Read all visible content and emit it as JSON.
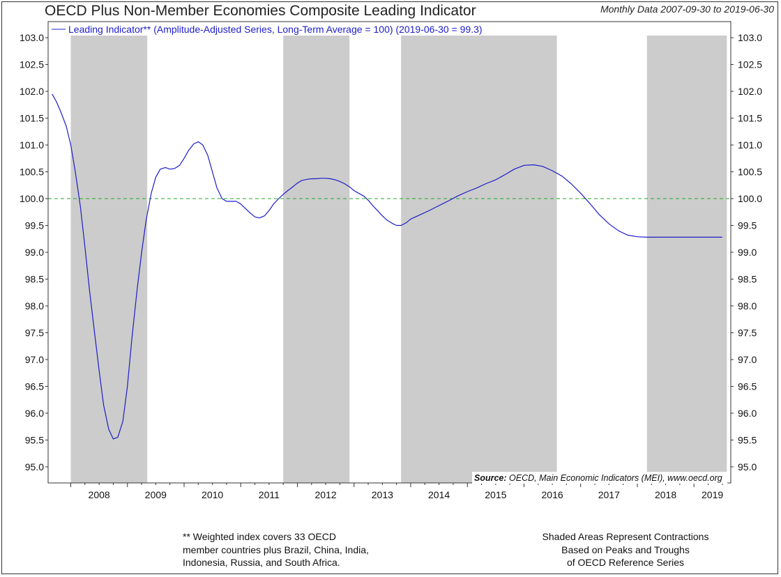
{
  "header": {
    "title": "OECD Plus Non-Member Economies Composite Leading Indicator",
    "date_range": "Monthly Data 2007-09-30 to 2019-06-30"
  },
  "footnotes": {
    "left": [
      "** Weighted index covers 33 OECD",
      "member countries plus Brazil, China, India,",
      "Indonesia, Russia, and South Africa."
    ],
    "right": [
      "Shaded Areas Represent Contractions",
      "Based on Peaks and Troughs",
      "of OECD Reference Series"
    ]
  },
  "chart_data": {
    "type": "line",
    "title": "OECD Plus Non-Member Economies Composite Leading Indicator",
    "legend": "Leading Indicator** (Amplitude-Adjusted Series, Long-Term Average = 100) (2019-06-30 = 99.3)",
    "legend_position": "top-left",
    "source_label": "Source:",
    "source_text": "OECD, Main Economic Indicators (MEI), www.oecd.org",
    "xlim": [
      2007.6,
      2019.65
    ],
    "ylim": [
      94.7,
      103.3
    ],
    "y_ticks": [
      95.0,
      95.5,
      96.0,
      96.5,
      97.0,
      97.5,
      98.0,
      98.5,
      99.0,
      99.5,
      100.0,
      100.5,
      101.0,
      101.5,
      102.0,
      102.5,
      103.0
    ],
    "y_tick_labels": [
      "95.0",
      "95.5",
      "96.0",
      "96.5",
      "97.0",
      "97.5",
      "98.0",
      "98.5",
      "99.0",
      "99.5",
      "100.0",
      "100.5",
      "101.0",
      "101.5",
      "102.0",
      "102.5",
      "103.0"
    ],
    "x_year_labels": [
      "2008",
      "2009",
      "2010",
      "2011",
      "2012",
      "2013",
      "2014",
      "2015",
      "2016",
      "2017",
      "2018",
      "2019"
    ],
    "reference_line": {
      "value": 100.0,
      "color": "#22aa22"
    },
    "shaded_periods": [
      [
        2008.0,
        2009.35
      ],
      [
        2011.75,
        2012.92
      ],
      [
        2013.83,
        2016.58
      ],
      [
        2018.17,
        2019.58
      ]
    ],
    "colors": {
      "series": "#1c1cc8",
      "shade": "#cccccc",
      "reference": "#22aa22"
    },
    "series": [
      {
        "name": "Leading Indicator** (Amplitude-Adjusted Series, Long-Term Average = 100) (2019-06-30 = 99.3)",
        "x": [
          2007.67,
          2007.75,
          2007.83,
          2007.92,
          2008.0,
          2008.08,
          2008.17,
          2008.25,
          2008.33,
          2008.42,
          2008.5,
          2008.58,
          2008.67,
          2008.75,
          2008.83,
          2008.92,
          2009.0,
          2009.08,
          2009.17,
          2009.25,
          2009.33,
          2009.42,
          2009.5,
          2009.58,
          2009.67,
          2009.75,
          2009.83,
          2009.92,
          2010.0,
          2010.08,
          2010.17,
          2010.25,
          2010.33,
          2010.42,
          2010.5,
          2010.58,
          2010.67,
          2010.75,
          2010.83,
          2010.92,
          2011.0,
          2011.08,
          2011.17,
          2011.25,
          2011.33,
          2011.42,
          2011.5,
          2011.58,
          2011.67,
          2011.75,
          2011.83,
          2011.92,
          2012.0,
          2012.08,
          2012.17,
          2012.25,
          2012.33,
          2012.42,
          2012.5,
          2012.58,
          2012.67,
          2012.75,
          2012.83,
          2012.92,
          2013.0,
          2013.08,
          2013.17,
          2013.25,
          2013.33,
          2013.42,
          2013.5,
          2013.58,
          2013.67,
          2013.75,
          2013.83,
          2013.92,
          2014.0,
          2014.17,
          2014.33,
          2014.5,
          2014.67,
          2014.83,
          2015.0,
          2015.17,
          2015.33,
          2015.5,
          2015.67,
          2015.83,
          2016.0,
          2016.17,
          2016.33,
          2016.5,
          2016.67,
          2016.83,
          2017.0,
          2017.17,
          2017.33,
          2017.5,
          2017.67,
          2017.83,
          2018.0,
          2018.17,
          2018.33,
          2018.5,
          2018.67,
          2018.83,
          2019.0,
          2019.17,
          2019.33,
          2019.5
        ],
        "y": [
          101.95,
          101.8,
          101.6,
          101.35,
          101.0,
          100.5,
          99.85,
          99.1,
          98.3,
          97.5,
          96.8,
          96.15,
          95.7,
          95.52,
          95.55,
          95.85,
          96.5,
          97.4,
          98.3,
          99.0,
          99.6,
          100.1,
          100.4,
          100.55,
          100.58,
          100.55,
          100.56,
          100.62,
          100.75,
          100.9,
          101.02,
          101.06,
          101.0,
          100.8,
          100.5,
          100.2,
          100.0,
          99.95,
          99.95,
          99.95,
          99.9,
          99.82,
          99.73,
          99.66,
          99.64,
          99.68,
          99.78,
          99.9,
          100.0,
          100.08,
          100.15,
          100.22,
          100.29,
          100.34,
          100.36,
          100.37,
          100.37,
          100.38,
          100.38,
          100.37,
          100.35,
          100.32,
          100.28,
          100.22,
          100.15,
          100.1,
          100.05,
          99.97,
          99.87,
          99.77,
          99.68,
          99.6,
          99.54,
          99.5,
          99.5,
          99.55,
          99.62,
          99.7,
          99.78,
          99.87,
          99.96,
          100.05,
          100.13,
          100.2,
          100.28,
          100.35,
          100.45,
          100.55,
          100.62,
          100.63,
          100.6,
          100.52,
          100.42,
          100.28,
          100.1,
          99.9,
          99.7,
          99.53,
          99.4,
          99.32,
          99.29,
          99.28,
          99.28,
          99.28,
          99.28,
          99.28,
          99.28,
          99.28,
          99.28,
          99.28
        ]
      }
    ]
  }
}
